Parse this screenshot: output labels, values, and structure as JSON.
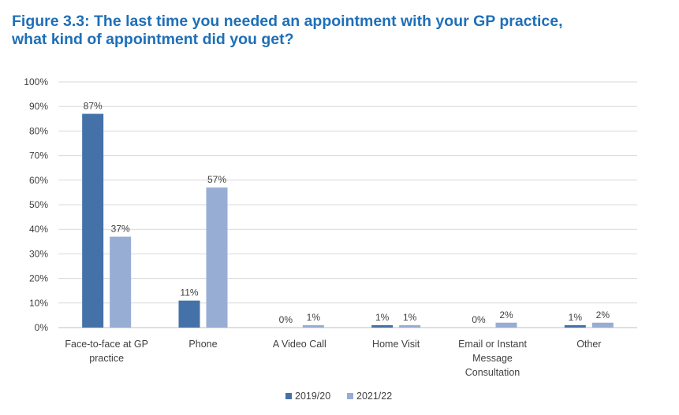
{
  "title_lines": [
    "Figure 3.3: The last time you needed an appointment with your GP practice,",
    "what kind of appointment did you get?"
  ],
  "colors": {
    "title": "#1e6fb8",
    "series_2019": "#4472a8",
    "series_2021": "#97add4",
    "grid": "#d9d9d9"
  },
  "chart_data": {
    "type": "bar",
    "title": "Figure 3.3: The last time you needed an appointment with your GP practice, what kind of appointment did you get?",
    "categories": [
      [
        "Face-to-face at GP",
        "practice"
      ],
      [
        "Phone"
      ],
      [
        "A Video Call"
      ],
      [
        "Home Visit"
      ],
      [
        "Email or Instant",
        "Message",
        "Consultation"
      ],
      [
        "Other"
      ]
    ],
    "series": [
      {
        "name": "2019/20",
        "values": [
          87,
          11,
          0,
          1,
          0,
          1
        ],
        "color": "#4472a8",
        "labels": [
          "87%",
          "11%",
          "0%",
          "1%",
          "0%",
          "1%"
        ]
      },
      {
        "name": "2021/22",
        "values": [
          37,
          57,
          1,
          1,
          2,
          2
        ],
        "color": "#97add4",
        "labels": [
          "37%",
          "57%",
          "1%",
          "1%",
          "2%",
          "2%"
        ]
      }
    ],
    "y_ticks": [
      "0%",
      "10%",
      "20%",
      "30%",
      "40%",
      "50%",
      "60%",
      "70%",
      "80%",
      "90%",
      "100%"
    ],
    "ylim": [
      0,
      100
    ],
    "grid": true,
    "legend_position": "bottom"
  }
}
